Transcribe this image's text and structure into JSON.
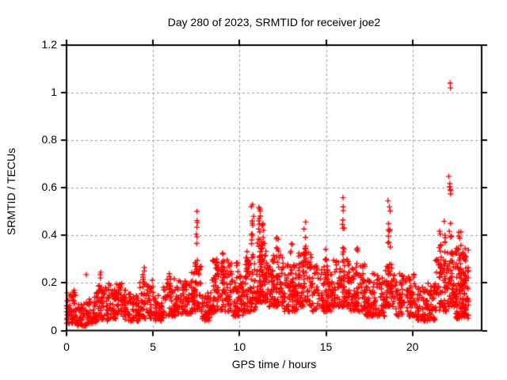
{
  "chart_data": {
    "type": "scatter",
    "title": "Day 280 of 2023, SRMTID for receiver joe2",
    "xlabel": "GPS time / hours",
    "ylabel": "SRMTID / TECUs",
    "xlim": [
      0,
      24
    ],
    "ylim": [
      0,
      1.2
    ],
    "xticks": {
      "values": [
        0,
        5,
        10,
        15,
        20
      ],
      "labels": [
        "0",
        "5",
        "10",
        "15",
        "20"
      ]
    },
    "yticks": {
      "values": [
        0,
        0.2,
        0.4,
        0.6,
        0.8,
        1.0,
        1.2
      ],
      "labels": [
        "0",
        "0.2",
        "0.4",
        "0.6",
        "0.8",
        "1",
        "1.2"
      ]
    },
    "grid": true,
    "legend": "none",
    "grid_color": "#9b9b9b",
    "frame_color": "#000000",
    "marker": {
      "shape": "plus",
      "color": "#ff0000",
      "size": 7
    },
    "seed": 280,
    "band_segments": [
      [
        0.0,
        0.6,
        55,
        0.03,
        0.17
      ],
      [
        0.6,
        1.2,
        45,
        0.02,
        0.12
      ],
      [
        1.2,
        1.7,
        40,
        0.03,
        0.14
      ],
      [
        1.7,
        2.4,
        55,
        0.04,
        0.19
      ],
      [
        2.4,
        3.2,
        65,
        0.05,
        0.2
      ],
      [
        3.2,
        4.2,
        75,
        0.04,
        0.18
      ],
      [
        4.2,
        5.0,
        60,
        0.05,
        0.22
      ],
      [
        5.0,
        5.6,
        45,
        0.04,
        0.16
      ],
      [
        5.6,
        6.4,
        60,
        0.06,
        0.22
      ],
      [
        6.4,
        7.2,
        60,
        0.07,
        0.21
      ],
      [
        7.2,
        7.8,
        55,
        0.08,
        0.27
      ],
      [
        7.8,
        8.4,
        50,
        0.04,
        0.16
      ],
      [
        8.4,
        9.6,
        110,
        0.08,
        0.3
      ],
      [
        9.6,
        10.2,
        60,
        0.06,
        0.25
      ],
      [
        10.2,
        11.0,
        85,
        0.08,
        0.32
      ],
      [
        11.0,
        11.6,
        80,
        0.12,
        0.38
      ],
      [
        11.6,
        12.6,
        95,
        0.1,
        0.32
      ],
      [
        12.6,
        13.4,
        80,
        0.08,
        0.28
      ],
      [
        13.4,
        14.2,
        80,
        0.1,
        0.33
      ],
      [
        14.2,
        15.3,
        95,
        0.08,
        0.28
      ],
      [
        15.3,
        16.3,
        90,
        0.1,
        0.3
      ],
      [
        16.3,
        17.3,
        90,
        0.08,
        0.28
      ],
      [
        17.3,
        18.4,
        95,
        0.06,
        0.24
      ],
      [
        18.4,
        19.0,
        55,
        0.1,
        0.28
      ],
      [
        19.0,
        20.2,
        100,
        0.06,
        0.24
      ],
      [
        20.2,
        21.3,
        90,
        0.04,
        0.2
      ],
      [
        21.3,
        22.0,
        65,
        0.08,
        0.3
      ],
      [
        22.0,
        22.5,
        55,
        0.1,
        0.35
      ],
      [
        22.5,
        23.25,
        135,
        0.05,
        0.35
      ]
    ],
    "columns": [
      [
        2.0,
        0.16,
        0.27,
        6
      ],
      [
        4.45,
        0.18,
        0.27,
        6
      ],
      [
        5.9,
        0.14,
        0.28,
        8
      ],
      [
        7.5,
        0.22,
        0.53,
        16
      ],
      [
        8.7,
        0.15,
        0.3,
        10
      ],
      [
        9.0,
        0.18,
        0.35,
        12
      ],
      [
        9.9,
        0.15,
        0.33,
        8
      ],
      [
        10.4,
        0.2,
        0.36,
        8
      ],
      [
        10.75,
        0.26,
        0.54,
        12
      ],
      [
        11.15,
        0.28,
        0.52,
        14
      ],
      [
        11.35,
        0.28,
        0.47,
        8
      ],
      [
        12.2,
        0.22,
        0.4,
        8
      ],
      [
        13.0,
        0.18,
        0.38,
        8
      ],
      [
        13.8,
        0.26,
        0.49,
        12
      ],
      [
        15.0,
        0.2,
        0.35,
        8
      ],
      [
        16.0,
        0.28,
        0.6,
        12
      ],
      [
        16.8,
        0.2,
        0.36,
        8
      ],
      [
        18.65,
        0.24,
        0.55,
        14
      ],
      [
        21.6,
        0.18,
        0.45,
        10
      ],
      [
        21.85,
        0.28,
        0.5,
        8
      ],
      [
        22.2,
        0.32,
        0.65,
        10
      ],
      [
        22.75,
        0.22,
        0.45,
        8
      ]
    ],
    "outliers": [
      [
        22.18,
        1.04
      ],
      [
        22.2,
        1.02
      ],
      [
        22.1,
        0.648
      ],
      [
        22.15,
        0.605
      ],
      [
        1.14,
        0.235
      ],
      [
        1.98,
        0.245
      ],
      [
        4.5,
        0.265
      ]
    ]
  }
}
